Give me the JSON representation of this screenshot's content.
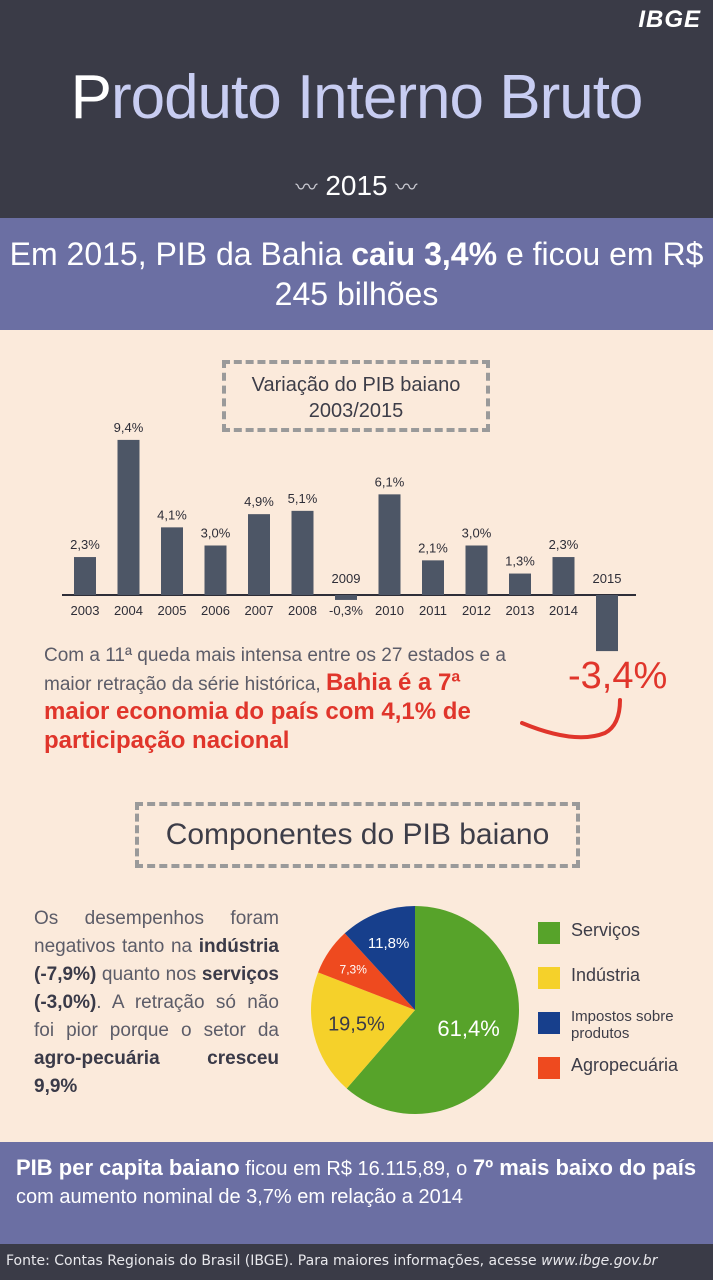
{
  "brand": "IBGE",
  "title": {
    "first_letter": "P",
    "rest": "roduto Interno Bruto"
  },
  "year": {
    "left": "〰",
    "value": "2015",
    "right": "〰"
  },
  "headline": {
    "part1": "Em 2015, PIB da Bahia ",
    "bold": "caiu 3,4%",
    "part2": " e ficou em R$ 245 bilhões"
  },
  "chart_title": {
    "line1": "Variação do PIB baiano",
    "line2": "2003/2015"
  },
  "chart_data": {
    "type": "bar",
    "categories": [
      "2003",
      "2004",
      "2005",
      "2006",
      "2007",
      "2008",
      "2009",
      "2010",
      "2011",
      "2012",
      "2013",
      "2014",
      "2015"
    ],
    "values": [
      2.3,
      9.4,
      4.1,
      3.0,
      4.9,
      5.1,
      -0.3,
      6.1,
      2.1,
      3.0,
      1.3,
      2.3,
      -3.4
    ],
    "labels": [
      "2,3%",
      "9,4%",
      "4,1%",
      "3,0%",
      "4,9%",
      "5,1%",
      "-0,3%",
      "6,1%",
      "2,1%",
      "3,0%",
      "1,3%",
      "2,3%",
      "-3,4%"
    ],
    "title": "Variação do PIB baiano 2003/2015",
    "bar_color": "#4d5666"
  },
  "note": {
    "part1": "Com a 11ª queda mais intensa entre os 27 estados e a maior retração da série histórica, ",
    "red": "Bahia é a 7ª maior economia do país com 4,1% de participação nacional"
  },
  "big_negative": "-3,4%",
  "components_title": "Componentes do PIB baiano",
  "components_text": {
    "t1": "Os desempenhos foram negativos tanto na ",
    "b1": "indústria (-7,9%)",
    "t2": " quanto nos ",
    "b2": "serviços (-3,0%)",
    "t3": ". A retração só não foi pior porque o setor da ",
    "b3": "agro-pecuária cresceu 9,9%"
  },
  "pie_data": {
    "type": "pie",
    "slices": [
      {
        "name": "Serviços",
        "value": 61.4,
        "label": "61,4%",
        "color": "#57a32a"
      },
      {
        "name": "Indústria",
        "value": 19.5,
        "label": "19,5%",
        "color": "#f5d12a"
      },
      {
        "name": "Agropecuária",
        "value": 7.3,
        "label": "7,3%",
        "color": "#ee4a1f"
      },
      {
        "name": "Impostos sobre produtos",
        "value": 11.8,
        "label": "11,8%",
        "color": "#173f8c"
      }
    ]
  },
  "legend": [
    {
      "label": "Serviços",
      "color": "#57a32a"
    },
    {
      "label": "Indústria",
      "color": "#f5d12a"
    },
    {
      "label": "Impostos sobre produtos",
      "color": "#173f8c"
    },
    {
      "label": "Agropecuária",
      "color": "#ee4a1f"
    }
  ],
  "bottom": {
    "b1": "PIB per capita baiano",
    "t1": " ficou em R$ 16.115,89, o ",
    "b2": "7º mais baixo do país",
    "t2": " com aumento nominal de 3,7% em relação a 2014"
  },
  "footer": {
    "text": "Fonte: Contas Regionais do Brasil (IBGE). Para maiores informações, acesse ",
    "url": "www.ibge.gov.br"
  }
}
